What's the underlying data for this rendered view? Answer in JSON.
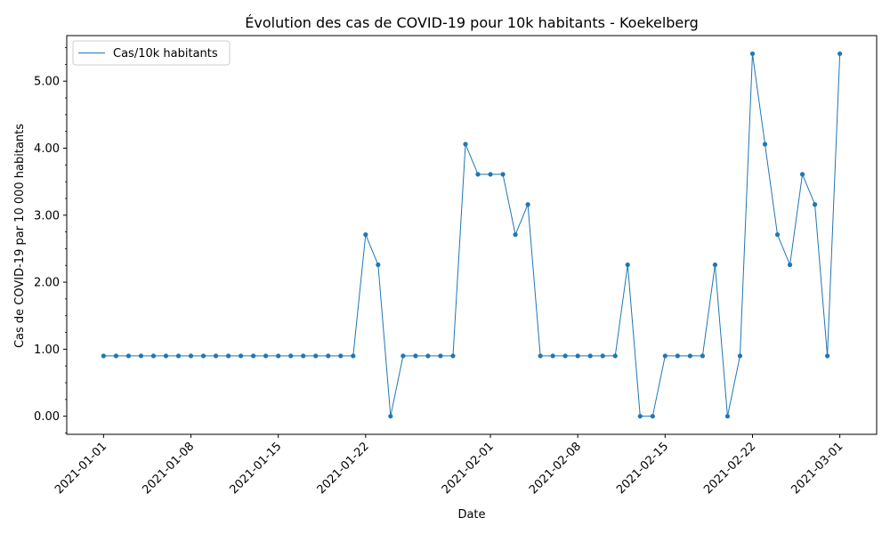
{
  "chart_data": {
    "type": "line",
    "title": "Évolution des cas de COVID-19 pour 10k habitants - Koekelberg",
    "xlabel": "Date",
    "ylabel": "Cas de COVID-19 par 10 000 habitants",
    "line_color": "#1f77b4",
    "legend_position": "top-left",
    "grid": false,
    "series": [
      {
        "name": "Cas/10k habitants",
        "x": [
          "2021-01-01",
          "2021-01-02",
          "2021-01-03",
          "2021-01-04",
          "2021-01-05",
          "2021-01-06",
          "2021-01-07",
          "2021-01-08",
          "2021-01-09",
          "2021-01-10",
          "2021-01-11",
          "2021-01-12",
          "2021-01-13",
          "2021-01-14",
          "2021-01-15",
          "2021-01-16",
          "2021-01-17",
          "2021-01-18",
          "2021-01-19",
          "2021-01-20",
          "2021-01-21",
          "2021-01-22",
          "2021-01-23",
          "2021-01-24",
          "2021-01-25",
          "2021-01-26",
          "2021-01-27",
          "2021-01-28",
          "2021-01-29",
          "2021-01-30",
          "2021-01-31",
          "2021-02-01",
          "2021-02-02",
          "2021-02-03",
          "2021-02-04",
          "2021-02-05",
          "2021-02-06",
          "2021-02-07",
          "2021-02-08",
          "2021-02-09",
          "2021-02-10",
          "2021-02-11",
          "2021-02-12",
          "2021-02-13",
          "2021-02-14",
          "2021-02-15",
          "2021-02-16",
          "2021-02-17",
          "2021-02-18",
          "2021-02-19",
          "2021-02-20",
          "2021-02-21",
          "2021-02-22",
          "2021-02-23",
          "2021-02-24",
          "2021-02-25",
          "2021-02-26",
          "2021-02-27",
          "2021-02-28",
          "2021-03-01"
        ],
        "values": [
          0.9,
          0.9,
          0.9,
          0.9,
          0.9,
          0.9,
          0.9,
          0.9,
          0.9,
          0.9,
          0.9,
          0.9,
          0.9,
          0.9,
          0.9,
          0.9,
          0.9,
          0.9,
          0.9,
          0.9,
          0.9,
          2.71,
          2.26,
          0.0,
          0.9,
          0.9,
          0.9,
          0.9,
          0.9,
          4.06,
          3.61,
          3.61,
          3.61,
          2.71,
          3.16,
          0.9,
          0.9,
          0.9,
          0.9,
          0.9,
          0.9,
          0.9,
          2.26,
          0.0,
          0.0,
          0.9,
          0.9,
          0.9,
          0.9,
          2.26,
          0.0,
          0.9,
          5.41,
          4.06,
          2.71,
          2.26,
          3.61,
          3.16,
          0.9,
          5.41
        ]
      }
    ],
    "x_ticks": [
      "2021-01-01",
      "2021-01-08",
      "2021-01-15",
      "2021-01-22",
      "2021-02-01",
      "2021-02-08",
      "2021-02-15",
      "2021-02-22",
      "2021-03-01"
    ],
    "y_ticks": [
      0,
      1,
      2,
      3,
      4,
      5
    ],
    "y_tick_labels": [
      "0.00",
      "1.00",
      "2.00",
      "3.00",
      "4.00",
      "5.00"
    ],
    "ylim": [
      -0.27,
      5.68
    ]
  }
}
